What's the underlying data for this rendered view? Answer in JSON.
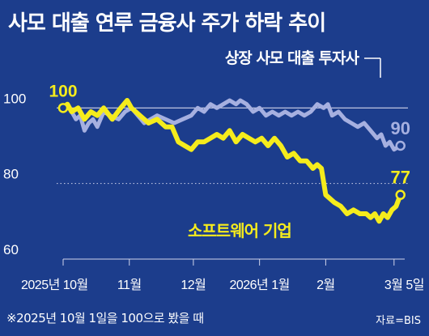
{
  "title": "사모 대출 연루 금융사 주가 하락 추이",
  "footnote": "※2025년 10월 1일을 100으로 봤을 때",
  "source": "자료=BIS",
  "colors": {
    "background": "#1c3d8c",
    "series_investor": "#a6b0e0",
    "series_software": "#f5ec1c",
    "text": "#ffffff",
    "grid": "#d0d4ea"
  },
  "chart_data": {
    "type": "line",
    "title": "사모 대출 연루 금융사 주가 하락 추이",
    "xlabel": "",
    "ylabel": "",
    "ylim": [
      60,
      105
    ],
    "xlim": [
      "2025-10-01",
      "2026-03-10"
    ],
    "yticks": [
      60,
      80,
      100
    ],
    "ytick_labels": [
      "60",
      "80",
      "100"
    ],
    "xtick_labels": [
      {
        "x": "2025-10-01",
        "label": "2025년 10월"
      },
      {
        "x": "2025-11-01",
        "label": "11월"
      },
      {
        "x": "2025-12-01",
        "label": "12월"
      },
      {
        "x": "2026-01-01",
        "label": "2026년 1월"
      },
      {
        "x": "2026-02-01",
        "label": "2월"
      },
      {
        "x": "2026-03-05",
        "label": "3월 5일"
      }
    ],
    "grid": "dotted horizontal at 80 and 100",
    "series": [
      {
        "name": "상장 사모 대출 투자사",
        "color": "#a6b0e0",
        "start_label": "100",
        "end_label": "90",
        "points": [
          [
            "2025-10-01",
            100
          ],
          [
            "2025-10-04",
            100
          ],
          [
            "2025-10-07",
            97
          ],
          [
            "2025-10-09",
            98
          ],
          [
            "2025-10-11",
            94
          ],
          [
            "2025-10-13",
            96
          ],
          [
            "2025-10-15",
            97
          ],
          [
            "2025-10-17",
            95
          ],
          [
            "2025-10-20",
            99
          ],
          [
            "2025-10-23",
            98
          ],
          [
            "2025-10-27",
            97
          ],
          [
            "2025-10-30",
            99
          ],
          [
            "2025-11-02",
            100
          ],
          [
            "2025-11-05",
            98
          ],
          [
            "2025-11-08",
            96
          ],
          [
            "2025-11-11",
            97
          ],
          [
            "2025-11-14",
            98
          ],
          [
            "2025-11-18",
            97
          ],
          [
            "2025-11-22",
            96
          ],
          [
            "2025-11-26",
            97
          ],
          [
            "2025-11-30",
            98
          ],
          [
            "2025-12-03",
            100
          ],
          [
            "2025-12-06",
            99
          ],
          [
            "2025-12-09",
            101
          ],
          [
            "2025-12-12",
            100
          ],
          [
            "2025-12-15",
            101
          ],
          [
            "2025-12-18",
            102
          ],
          [
            "2025-12-21",
            101
          ],
          [
            "2025-12-23",
            102
          ],
          [
            "2025-12-26",
            101
          ],
          [
            "2025-12-29",
            99
          ],
          [
            "2026-01-01",
            100
          ],
          [
            "2026-01-04",
            98
          ],
          [
            "2026-01-07",
            99
          ],
          [
            "2026-01-10",
            98
          ],
          [
            "2026-01-13",
            99
          ],
          [
            "2026-01-16",
            98
          ],
          [
            "2026-01-19",
            99
          ],
          [
            "2026-01-22",
            98
          ],
          [
            "2026-01-25",
            99
          ],
          [
            "2026-01-28",
            101
          ],
          [
            "2026-01-31",
            100
          ],
          [
            "2026-02-02",
            101
          ],
          [
            "2026-02-04",
            98
          ],
          [
            "2026-02-07",
            99
          ],
          [
            "2026-02-10",
            97
          ],
          [
            "2026-02-13",
            96
          ],
          [
            "2026-02-16",
            95
          ],
          [
            "2026-02-19",
            96
          ],
          [
            "2026-02-22",
            94
          ],
          [
            "2026-02-25",
            92
          ],
          [
            "2026-02-27",
            93
          ],
          [
            "2026-03-01",
            90
          ],
          [
            "2026-03-03",
            91
          ],
          [
            "2026-03-05",
            89
          ],
          [
            "2026-03-08",
            90
          ]
        ]
      },
      {
        "name": "소프트웨어 기업",
        "color": "#f5ec1c",
        "start_label": "",
        "end_label": "77",
        "points": [
          [
            "2025-10-01",
            100
          ],
          [
            "2025-10-03",
            101
          ],
          [
            "2025-10-05",
            99
          ],
          [
            "2025-10-08",
            100
          ],
          [
            "2025-10-11",
            97
          ],
          [
            "2025-10-14",
            99
          ],
          [
            "2025-10-17",
            98
          ],
          [
            "2025-10-20",
            100
          ],
          [
            "2025-10-24",
            97
          ],
          [
            "2025-10-28",
            100
          ],
          [
            "2025-10-31",
            102
          ],
          [
            "2025-11-02",
            100
          ],
          [
            "2025-11-06",
            98
          ],
          [
            "2025-11-10",
            96
          ],
          [
            "2025-11-14",
            97
          ],
          [
            "2025-11-18",
            95
          ],
          [
            "2025-11-21",
            95
          ],
          [
            "2025-11-24",
            91
          ],
          [
            "2025-11-27",
            90
          ],
          [
            "2025-11-30",
            89
          ],
          [
            "2025-12-03",
            91
          ],
          [
            "2025-12-06",
            91
          ],
          [
            "2025-12-09",
            92
          ],
          [
            "2025-12-12",
            93
          ],
          [
            "2025-12-15",
            92
          ],
          [
            "2025-12-18",
            94
          ],
          [
            "2025-12-21",
            91
          ],
          [
            "2025-12-24",
            93
          ],
          [
            "2025-12-27",
            92
          ],
          [
            "2025-12-30",
            91
          ],
          [
            "2026-01-02",
            92
          ],
          [
            "2026-01-05",
            90
          ],
          [
            "2026-01-08",
            92
          ],
          [
            "2026-01-11",
            90
          ],
          [
            "2026-01-14",
            87
          ],
          [
            "2026-01-17",
            88
          ],
          [
            "2026-01-20",
            86
          ],
          [
            "2026-01-23",
            86
          ],
          [
            "2026-01-26",
            84
          ],
          [
            "2026-01-28",
            85
          ],
          [
            "2026-01-30",
            84
          ],
          [
            "2026-02-01",
            77
          ],
          [
            "2026-02-03",
            76
          ],
          [
            "2026-02-05",
            75
          ],
          [
            "2026-02-08",
            74
          ],
          [
            "2026-02-11",
            72
          ],
          [
            "2026-02-14",
            73
          ],
          [
            "2026-02-17",
            72
          ],
          [
            "2026-02-20",
            72
          ],
          [
            "2026-02-22",
            71
          ],
          [
            "2026-02-24",
            72
          ],
          [
            "2026-02-26",
            70
          ],
          [
            "2026-02-28",
            72
          ],
          [
            "2026-03-02",
            71
          ],
          [
            "2026-03-04",
            73
          ],
          [
            "2026-03-06",
            74
          ],
          [
            "2026-03-08",
            77
          ]
        ]
      }
    ],
    "annotations": [
      {
        "text": "상장 사모 대출 투자사",
        "series": 0
      },
      {
        "text": "소프트웨어 기업",
        "series": 1
      }
    ]
  }
}
